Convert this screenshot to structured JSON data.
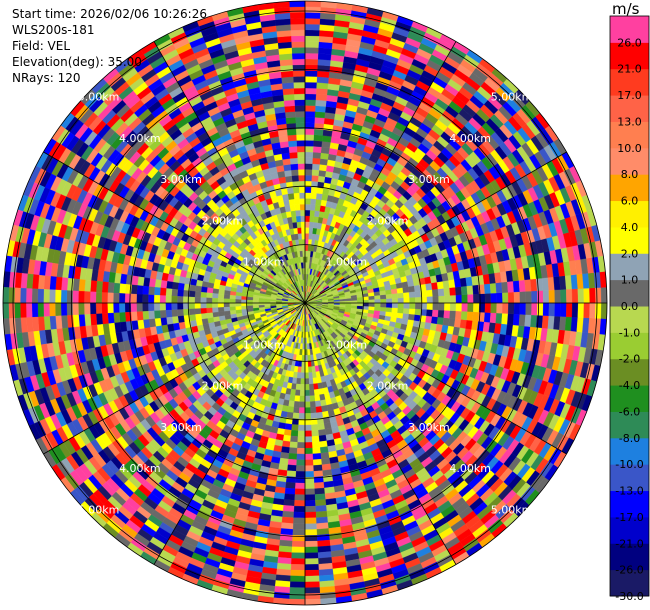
{
  "info": {
    "start_time": "Start time: 2026/02/06 10:26:26",
    "station": "WLS200s-181",
    "field": "Field: VEL",
    "elevation": "Elevation(deg): 35.00",
    "nrays": "NRays: 120"
  },
  "chart_data": {
    "type": "heatmap",
    "projection": "polar (PPI)",
    "field": "VEL",
    "elevation_deg": 35.0,
    "n_rays": 120,
    "range_rings_km": [
      1.0,
      2.0,
      3.0,
      4.0,
      5.0
    ],
    "ring_labels": [
      "1.00km",
      "2.00km",
      "3.00km",
      "4.00km",
      "5.00km"
    ],
    "colorbar": {
      "unit": "m/s",
      "boundaries": [
        -30,
        -26,
        -21,
        -17,
        -13,
        -10,
        -8,
        -6,
        -4,
        -2,
        -1,
        0,
        1,
        2,
        4,
        6,
        8,
        10,
        13,
        17,
        21,
        26,
        30
      ],
      "tick_labels": [
        "-30.0",
        "-26.0",
        "-21.0",
        "-17.0",
        "-13.0",
        "-10.0",
        "-8.0",
        "-6.0",
        "-4.0",
        "-2.0",
        "-1.0",
        "0.0",
        "1.0",
        "2.0",
        "4.0",
        "6.0",
        "8.0",
        "10.0",
        "13.0",
        "17.0",
        "21.0",
        "26.0"
      ],
      "colors": [
        "#1a1a66",
        "#000080",
        "#0000cc",
        "#0000ff",
        "#3a56c8",
        "#1e80e0",
        "#2e8b57",
        "#1f8f1f",
        "#6b8e23",
        "#9acd32",
        "#b8d850",
        "#696969",
        "#8fa3b5",
        "#ffff00",
        "#fff000",
        "#ffa500",
        "#ff8c69",
        "#ff7f50",
        "#ff6347",
        "#ff3b1f",
        "#ff0000",
        "#ff40a0"
      ]
    },
    "description": "Doppler radial velocity, plan position indicator, mostly near-zero to slightly positive values within 2 km range, noisy values beyond"
  }
}
